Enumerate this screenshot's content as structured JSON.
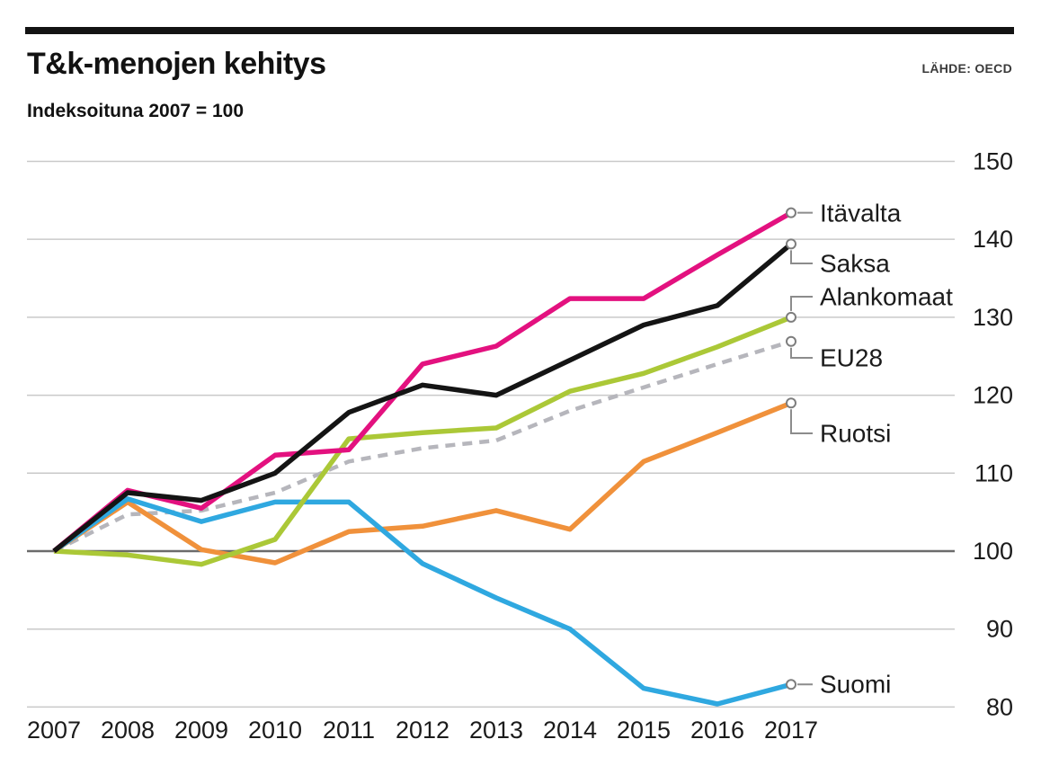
{
  "header": {
    "title": "T&k-menojen kehitys",
    "subtitle": "Indeksoituna 2007 = 100",
    "source": "LÄHDE: OECD"
  },
  "chart_data": {
    "type": "line",
    "title": "T&k-menojen kehitys",
    "subtitle": "Indeksoituna 2007 = 100",
    "source": "LÄHDE: OECD",
    "x": [
      2007,
      2008,
      2009,
      2010,
      2011,
      2012,
      2013,
      2014,
      2015,
      2016,
      2017
    ],
    "x_tick_labels": [
      "2007",
      "2008",
      "2009",
      "2010",
      "2011",
      "2012",
      "2013",
      "2014",
      "2015",
      "2016",
      "2017"
    ],
    "ylim": [
      78,
      152
    ],
    "yticks": [
      80,
      90,
      100,
      110,
      120,
      130,
      140,
      150
    ],
    "baseline_value": 100,
    "grid": true,
    "legend_position": "end-of-line-labels-right",
    "series": [
      {
        "name": "EU28",
        "color": "#b6b6bc",
        "dashed": true,
        "values": [
          100,
          104.7,
          105.2,
          107.5,
          111.5,
          113.2,
          114.2,
          118.0,
          121.0,
          124.0,
          126.9
        ]
      },
      {
        "name": "Ruotsi",
        "color": "#f0913b",
        "dashed": false,
        "values": [
          100,
          106.3,
          100.2,
          98.5,
          102.5,
          103.2,
          105.2,
          102.8,
          111.5,
          115.2,
          119.0
        ]
      },
      {
        "name": "Suomi",
        "color": "#2fa8e0",
        "dashed": false,
        "values": [
          100,
          106.7,
          103.8,
          106.3,
          106.3,
          98.4,
          94.0,
          90.0,
          82.4,
          80.4,
          82.9
        ]
      },
      {
        "name": "Alankomaat",
        "color": "#abc837",
        "dashed": false,
        "values": [
          100,
          99.5,
          98.3,
          101.5,
          114.4,
          115.2,
          115.8,
          120.5,
          122.8,
          126.2,
          130.0
        ]
      },
      {
        "name": "Itävalta",
        "color": "#e3117f",
        "dashed": false,
        "values": [
          100,
          107.8,
          105.5,
          112.3,
          113.0,
          124.0,
          126.3,
          132.4,
          132.4,
          138.0,
          143.4
        ]
      },
      {
        "name": "Saksa",
        "color": "#141414",
        "dashed": false,
        "values": [
          100,
          107.5,
          106.5,
          110.0,
          117.8,
          121.3,
          120.0,
          124.5,
          129.0,
          131.5,
          139.4
        ]
      }
    ]
  }
}
